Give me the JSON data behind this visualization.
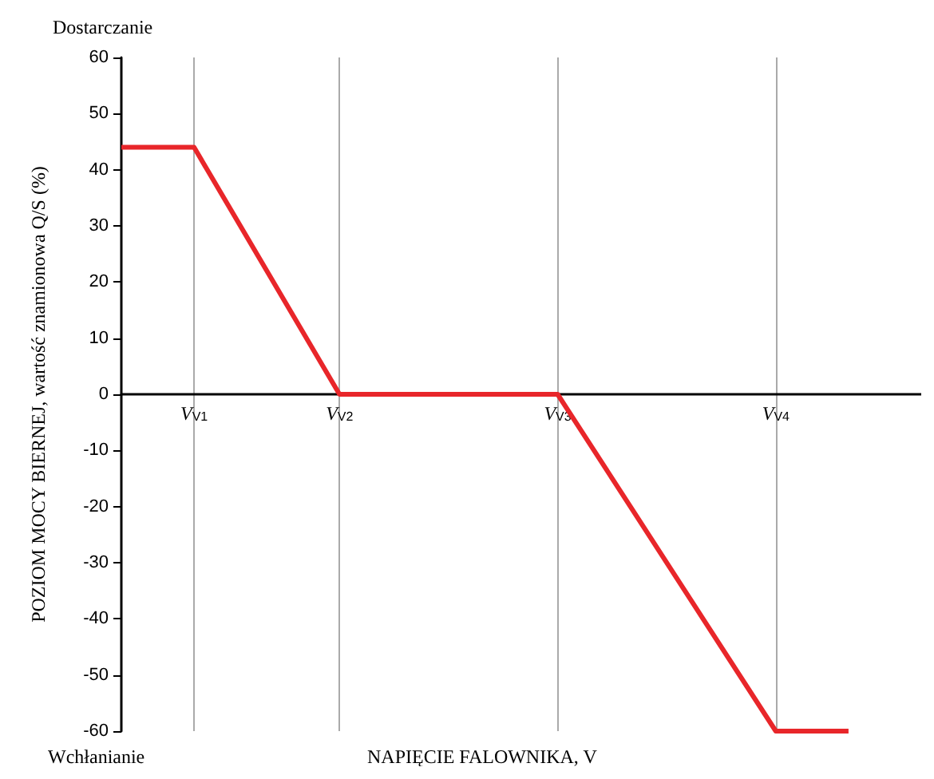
{
  "chart_data": {
    "type": "line",
    "xlabel": "NAPIĘCIE FALOWNIKA, V",
    "ylabel": "POZIOM MOCY BIERNEJ, wartość znamionowa Q/S (%)",
    "categories": [
      null,
      "V$_{V1}$",
      null,
      "V$_{V2}$",
      null,
      null,
      "V$_{V3}$",
      null,
      null,
      "V$_{V4}$",
      null,
      null
    ],
    "values": [
      44,
      44,
      22,
      0,
      0,
      0,
      0,
      -20,
      -40,
      -60,
      -60,
      null
    ],
    "color": "#e8262a",
    "line_style": "solid",
    "marker": "none",
    "ylim": [
      -60,
      60
    ],
    "yticks": [
      -60,
      -50,
      -40,
      -30,
      -20,
      -10,
      0,
      10,
      20,
      30,
      40,
      50,
      60
    ],
    "grid": "x",
    "annotations": [
      "Dostarczanie",
      "Wchłanianie"
    ]
  }
}
